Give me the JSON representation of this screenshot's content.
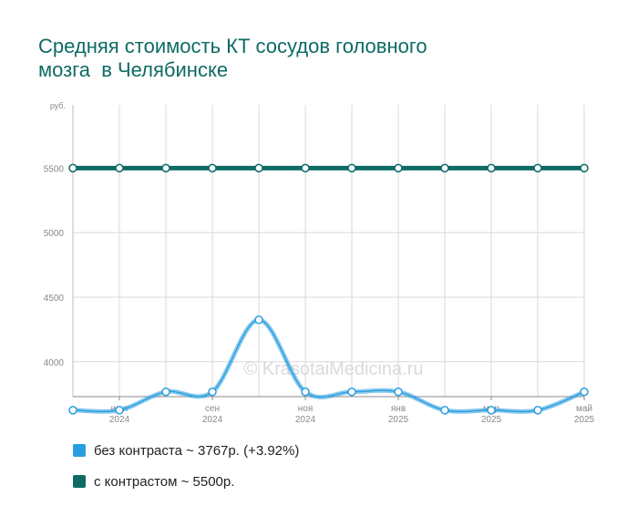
{
  "title": {
    "line1": "Средняя стоимость КТ сосудов головного",
    "line2": "мозга  в Челябинске"
  },
  "watermark": "© KrasotaiMedicina.ru",
  "chart_data": {
    "type": "line",
    "ylabel": "руб.",
    "ylim": [
      3730,
      5990
    ],
    "y_ticks": [
      4000,
      4500,
      5000,
      5500
    ],
    "x_ticks": [
      {
        "month": "июл",
        "year": "2024"
      },
      {
        "month": "сен",
        "year": "2024"
      },
      {
        "month": "ноя",
        "year": "2024"
      },
      {
        "month": "янв",
        "year": "2025"
      },
      {
        "month": "мар",
        "year": "2025"
      },
      {
        "month": "май",
        "year": "2025"
      }
    ],
    "x": [
      "2024-06",
      "2024-07",
      "2024-08",
      "2024-09",
      "2024-10",
      "2024-11",
      "2024-12",
      "2025-01",
      "2025-02",
      "2025-03",
      "2025-04",
      "2025-05"
    ],
    "grid": true,
    "series": [
      {
        "name": "без контраста",
        "color": "#2a9fe0",
        "values": [
          3625,
          3625,
          3767,
          3767,
          4325,
          3767,
          3767,
          3767,
          3625,
          3625,
          3625,
          3767
        ]
      },
      {
        "name": "с контрастом",
        "color": "#0d6b63",
        "values": [
          5500,
          5500,
          5500,
          5500,
          5500,
          5500,
          5500,
          5500,
          5500,
          5500,
          5500,
          5500
        ]
      }
    ]
  },
  "legend": [
    {
      "label": "без контраста ~ 3767р. (+3.92%)",
      "color": "#2a9fe0"
    },
    {
      "label": "с контрастом ~ 5500р.",
      "color": "#0d6b63"
    }
  ]
}
